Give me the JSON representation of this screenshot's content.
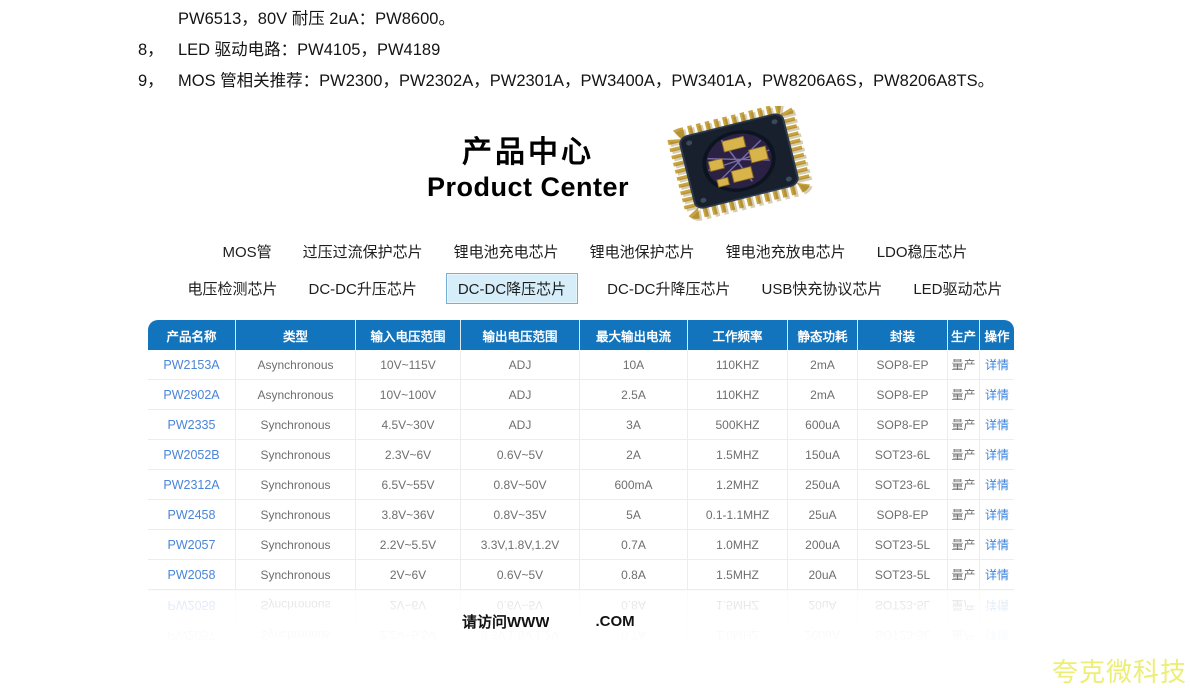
{
  "intro": {
    "lines": [
      {
        "num": "",
        "text": "PW6513，80V 耐压 2uA：PW8600。"
      },
      {
        "num": "8，",
        "text": "LED 驱动电路：PW4105，PW4189"
      },
      {
        "num": "9，",
        "text": "MOS 管相关推荐：PW2300，PW2302A，PW2301A，PW3400A，PW3401A，PW8206A6S，PW8206A8TS。"
      }
    ]
  },
  "product_center": {
    "title_cn": "产品中心",
    "title_en": "Product Center",
    "chip_icon": "ic-chip-photo"
  },
  "nav": {
    "selected": "DC-DC降压芯片",
    "row1": [
      "MOS管",
      "过压过流保护芯片",
      "锂电池充电芯片",
      "锂电池保护芯片",
      "锂电池充放电芯片",
      "LDO稳压芯片"
    ],
    "row2": [
      "电压检测芯片",
      "DC-DC升压芯片",
      "DC-DC降压芯片",
      "DC-DC升降压芯片",
      "USB快充协议芯片",
      "LED驱动芯片"
    ]
  },
  "table": {
    "headers": [
      "产品名称",
      "类型",
      "输入电压范围",
      "输出电压范围",
      "最大输出电流",
      "工作频率",
      "静态功耗",
      "封装",
      "生产",
      "操作"
    ],
    "rows": [
      [
        "PW2153A",
        "Asynchronous",
        "10V~115V",
        "ADJ",
        "10A",
        "110KHZ",
        "2mA",
        "SOP8-EP",
        "量产",
        "详情"
      ],
      [
        "PW2902A",
        "Asynchronous",
        "10V~100V",
        "ADJ",
        "2.5A",
        "110KHZ",
        "2mA",
        "SOP8-EP",
        "量产",
        "详情"
      ],
      [
        "PW2335",
        "Synchronous",
        "4.5V~30V",
        "ADJ",
        "3A",
        "500KHZ",
        "600uA",
        "SOP8-EP",
        "量产",
        "详情"
      ],
      [
        "PW2052B",
        "Synchronous",
        "2.3V~6V",
        "0.6V~5V",
        "2A",
        "1.5MHZ",
        "150uA",
        "SOT23-6L",
        "量产",
        "详情"
      ],
      [
        "PW2312A",
        "Synchronous",
        "6.5V~55V",
        "0.8V~50V",
        "600mA",
        "1.2MHZ",
        "250uA",
        "SOT23-6L",
        "量产",
        "详情"
      ],
      [
        "PW2458",
        "Synchronous",
        "3.8V~36V",
        "0.8V~35V",
        "5A",
        "0.1-1.1MHZ",
        "25uA",
        "SOP8-EP",
        "量产",
        "详情"
      ],
      [
        "PW2057",
        "Synchronous",
        "2.2V~5.5V",
        "3.3V,1.8V,1.2V",
        "0.7A",
        "1.0MHZ",
        "200uA",
        "SOT23-5L",
        "量产",
        "详情"
      ],
      [
        "PW2058",
        "Synchronous",
        "2V~6V",
        "0.6V~5V",
        "0.8A",
        "1.5MHZ",
        "20uA",
        "SOT23-5L",
        "量产",
        "详情"
      ]
    ]
  },
  "footer": {
    "visit_prefix": "请访问WWW",
    "visit_suffix": ".COM"
  },
  "watermark": {
    "text": "夸克微科技"
  },
  "colors": {
    "header_blue": "#1274bd",
    "product_link_blue": "#4a85d8",
    "detail_link_blue": "#3c86dd",
    "tab_selected_bg": "#d6eef9",
    "tab_selected_border": "#77b0d4",
    "watermark_yellow": "#edee74"
  }
}
